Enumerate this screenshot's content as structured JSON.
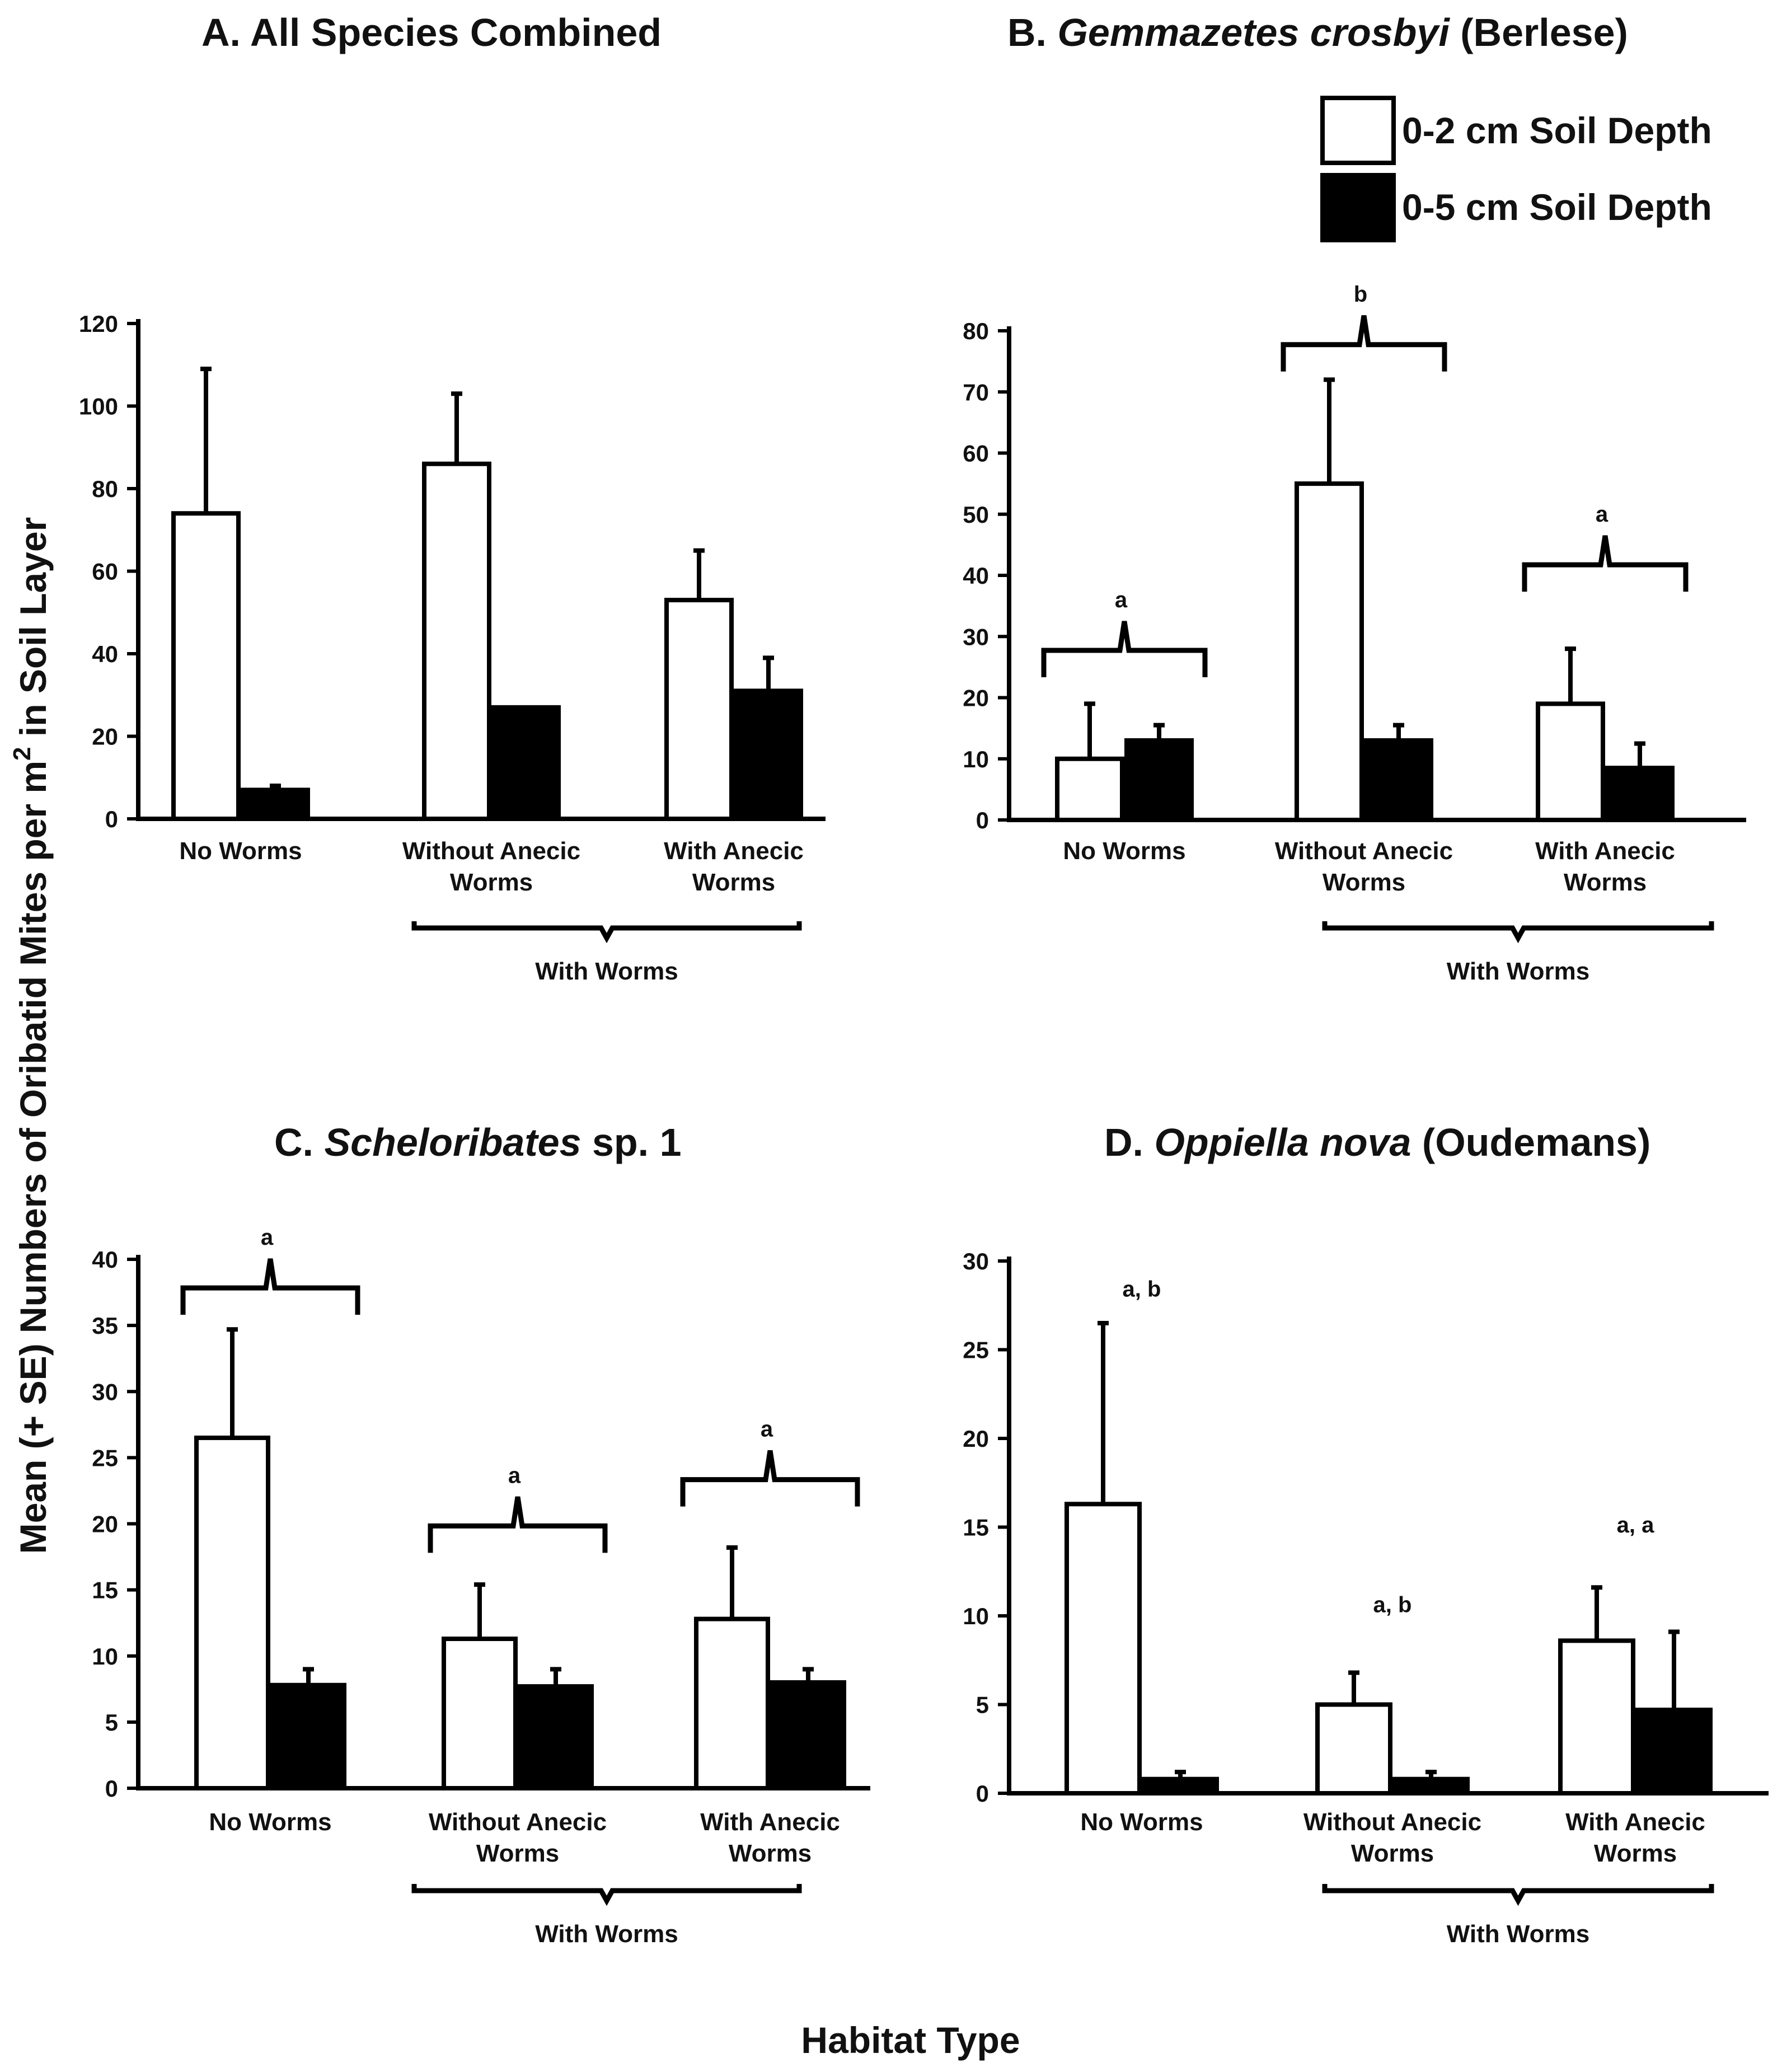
{
  "figure": {
    "y_axis_label_prefix": "Mean (+ SE) Numbers of Oribatid Mites per m",
    "y_axis_label_superscript": "2",
    "y_axis_label_suffix": " in Soil Layer",
    "x_axis_label": "Habitat Type",
    "legend": [
      {
        "label": "0-2 cm Soil Depth",
        "fill": "#ffffff"
      },
      {
        "label": "0-5 cm Soil Depth",
        "fill": "#000000"
      }
    ],
    "colors": {
      "bar_shallow": "#ffffff",
      "bar_deep": "#000000",
      "stroke": "#000000"
    }
  },
  "chart_data": [
    {
      "type": "bar",
      "panel": "A",
      "title_letter": "A.",
      "title_italic": "",
      "title_rest": " All Species Combined",
      "categories": [
        "No Worms",
        "Without Anecic Worms",
        "With Anecic Worms"
      ],
      "category_lines": [
        [
          "No Worms"
        ],
        [
          "Without Anecic",
          "Worms"
        ],
        [
          "With Anecic",
          "Worms"
        ]
      ],
      "group_label": "With Worms",
      "series": [
        {
          "name": "0-2 cm Soil Depth",
          "values": [
            74,
            86,
            53
          ],
          "se_top": [
            109,
            103,
            65
          ]
        },
        {
          "name": "0-5 cm Soil Depth",
          "values": [
            7,
            27,
            31
          ],
          "se_top": [
            8,
            27,
            39
          ]
        }
      ],
      "ylim": [
        0,
        120
      ],
      "yticks": [
        0,
        20,
        40,
        60,
        80,
        100,
        120
      ],
      "significance": []
    },
    {
      "type": "bar",
      "panel": "B",
      "title_letter": "B.",
      "title_italic": "Gemmazetes crosbyi",
      "title_rest": " (Berlese)",
      "categories": [
        "No Worms",
        "Without Anecic Worms",
        "With Anecic Worms"
      ],
      "category_lines": [
        [
          "No Worms"
        ],
        [
          "Without Anecic",
          "Worms"
        ],
        [
          "With Anecic",
          "Worms"
        ]
      ],
      "group_label": "With Worms",
      "series": [
        {
          "name": "0-2 cm Soil Depth",
          "values": [
            10,
            55,
            19
          ],
          "se_top": [
            19,
            72,
            28
          ]
        },
        {
          "name": "0-5 cm Soil Depth",
          "values": [
            13,
            13,
            8.5
          ],
          "se_top": [
            15.5,
            15.5,
            12.5
          ]
        }
      ],
      "ylim": [
        0,
        80
      ],
      "yticks": [
        0,
        10,
        20,
        30,
        40,
        50,
        60,
        70,
        80
      ],
      "significance": [
        {
          "category": 0,
          "letter": "a",
          "brace": true,
          "level": 27
        },
        {
          "category": 1,
          "letter": "b",
          "brace": true,
          "level": 77
        },
        {
          "category": 2,
          "letter": "a",
          "brace": true,
          "level": 41
        }
      ]
    },
    {
      "type": "bar",
      "panel": "C",
      "title_letter": "C.",
      "title_italic": "Scheloribates",
      "title_rest": " sp. 1",
      "categories": [
        "No Worms",
        "Without Anecic Worms",
        "With Anecic Worms"
      ],
      "category_lines": [
        [
          "No Worms"
        ],
        [
          "Without Anecic",
          "Worms"
        ],
        [
          "With Anecic",
          "Worms"
        ]
      ],
      "group_label": "With Worms",
      "series": [
        {
          "name": "0-2 cm Soil Depth",
          "values": [
            26.5,
            11.3,
            12.8
          ],
          "se_top": [
            34.7,
            15.4,
            18.2
          ]
        },
        {
          "name": "0-5 cm Soil Depth",
          "values": [
            7.8,
            7.7,
            8.0
          ],
          "se_top": [
            9.0,
            9.0,
            9.0
          ]
        }
      ],
      "ylim": [
        0,
        40
      ],
      "yticks": [
        0,
        5,
        10,
        15,
        20,
        25,
        30,
        35,
        40
      ],
      "significance": [
        {
          "category": 0,
          "letter": "a",
          "brace": true,
          "level": 37.5
        },
        {
          "category": 1,
          "letter": "a",
          "brace": true,
          "level": 19.5
        },
        {
          "category": 2,
          "letter": "a",
          "brace": true,
          "level": 23
        }
      ]
    },
    {
      "type": "bar",
      "panel": "D",
      "title_letter": "D.",
      "title_italic": "Oppiella nova",
      "title_rest": " (Oudemans)",
      "categories": [
        "No Worms",
        "Without Anecic Worms",
        "With Anecic Worms"
      ],
      "category_lines": [
        [
          "No Worms"
        ],
        [
          "Without Anecic",
          "Worms"
        ],
        [
          "With Anecic",
          "Worms"
        ]
      ],
      "group_label": "With Worms",
      "series": [
        {
          "name": "0-2 cm Soil Depth",
          "values": [
            16.3,
            5.0,
            8.6
          ],
          "se_top": [
            26.5,
            6.8,
            11.6
          ]
        },
        {
          "name": "0-5 cm Soil Depth",
          "values": [
            0.8,
            0.8,
            4.7
          ],
          "se_top": [
            1.2,
            1.2,
            9.1
          ]
        }
      ],
      "ylim": [
        0,
        30
      ],
      "yticks": [
        0,
        5,
        10,
        15,
        20,
        25,
        30
      ],
      "significance": [
        {
          "category": 0,
          "letter": "a, b",
          "brace": false,
          "level": 28
        },
        {
          "category": 1,
          "letter": "a, b",
          "brace": false,
          "level": 10.2
        },
        {
          "category": 2,
          "letter": "a, a",
          "brace": false,
          "level": 14.7
        }
      ]
    }
  ]
}
